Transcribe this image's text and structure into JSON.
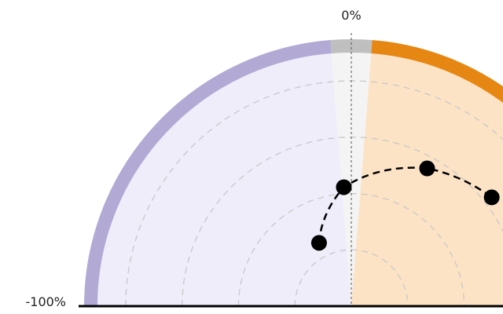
{
  "chart_data": {
    "type": "line",
    "chart_style": "semicircular polar plot, cropped at right and bottom",
    "title": "",
    "xlabel": "",
    "ylabel": "",
    "axis": {
      "ticks": [
        {
          "value": 0,
          "label": "0%"
        },
        {
          "value": -100,
          "label": "-100%"
        }
      ],
      "angle_range": [
        -100,
        100
      ],
      "radial_rings": 4,
      "grid": true
    },
    "sectors": [
      {
        "name": "negative",
        "from": -100,
        "to": -5,
        "fill": "#efedf9",
        "rim": "#b2aad4"
      },
      {
        "name": "neutral",
        "from": -5,
        "to": 5,
        "fill": "#f4f4f4",
        "rim": "#bfbfbf"
      },
      {
        "name": "positive",
        "from": 5,
        "to": 100,
        "fill": "#fde3c5",
        "rim": "#e68714"
      }
    ],
    "series": [
      {
        "points": [
          {
            "angle": -30,
            "radius": 0.28
          },
          {
            "angle": -4,
            "radius": 0.47
          },
          {
            "angle": 32,
            "radius": 0.62
          },
          {
            "angle": 58,
            "radius": 0.7
          }
        ],
        "line_color": "#000000",
        "line_style": "dashed"
      }
    ]
  }
}
